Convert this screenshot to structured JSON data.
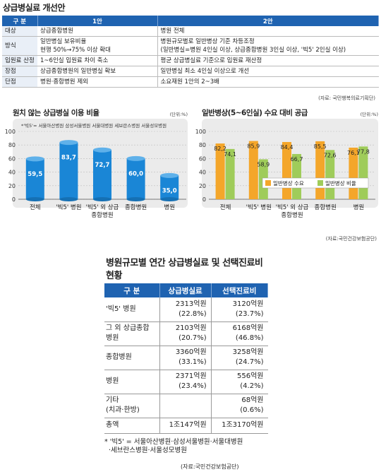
{
  "title": "상급병실료 개선안",
  "plan": {
    "headers": [
      "구  분",
      "1안",
      "2안"
    ],
    "rows": [
      {
        "k": "대상",
        "a": "상급종합병원",
        "b": "병원 전체"
      },
      {
        "k": "방식",
        "a": "일반병실 보유비율\n현행 50%→75% 이상 확대",
        "b": "병원규모별로 일반병상 기준 차등조정\n(일반병실=병원 4인실 이상, 상급종합병원 3인실 이상, '빅5' 2인실 이상)"
      },
      {
        "k": "입원료 산정",
        "a": "1~6인실 입원료 차이 축소",
        "b": "평균 상급병실료 기준으로 입원료 재산정"
      },
      {
        "k": "장점",
        "a": "상급종합병원의 일반병실 확보",
        "b": "일반병실 최소 4인실 이상으로 개선"
      },
      {
        "k": "단점",
        "a": "병원·종합병원 제외",
        "b": "소요재원 1안의 2~3배"
      }
    ],
    "source": "(자료: 국민행복의료기획단)"
  },
  "chart_data": [
    {
      "type": "bar",
      "title": "원치 않는 상급병실 이용 비율",
      "unit": "(단위:%)",
      "note": "*'빅5'= 서울아산병원 삼성서울병원 서울대병원 세브란스병원 서울성모병원",
      "categories": [
        "전체",
        "'빅5' 병원",
        "'빅5' 외 상급\n종합병원",
        "종합병원",
        "병원"
      ],
      "values": [
        59.5,
        83.7,
        72.7,
        60.0,
        35.0
      ],
      "value_labels": [
        "59,5",
        "83,7",
        "72,7",
        "60,0",
        "35,0"
      ],
      "y_ticks": [
        "0",
        "20",
        "40",
        "60",
        "80",
        "100"
      ],
      "ylim": [
        0,
        100
      ],
      "color": "#1a86d6"
    },
    {
      "type": "bar",
      "title": "일반병상(5~6인실) 수요 대비 공급",
      "unit": "(단위:%)",
      "categories": [
        "전체",
        "'빅5' 병원",
        "'빅5' 외 상급\n종합병원",
        "종합병원",
        "병원"
      ],
      "series": [
        {
          "name": "일반병상 수요",
          "values": [
            82.2,
            85.9,
            84.4,
            85.5,
            76.1
          ],
          "labels": [
            "82,2",
            "85,9",
            "84,4",
            "85,5",
            "76,1"
          ],
          "color": "#f4a62a"
        },
        {
          "name": "일반병상 비율",
          "values": [
            74.1,
            58.9,
            66.7,
            72.6,
            77.8
          ],
          "labels": [
            "74,1",
            "58,9",
            "66,7",
            "72,6",
            "77,8"
          ],
          "color": "#9fcc5a"
        }
      ],
      "y_ticks": [
        "0",
        "20",
        "40",
        "60",
        "80",
        "100"
      ],
      "ylim": [
        0,
        100
      ],
      "source": "(자료:국민건강보험공단)"
    }
  ],
  "cost": {
    "title": "병원규모별 연간 상급병실료 및 선택진료비 현황",
    "headers": [
      "구  분",
      "상급병실료",
      "선택진료비"
    ],
    "rows": [
      {
        "k": "'빅5' 병원",
        "a": "2313억원",
        "a2": "(22.8%)",
        "b": "3120억원",
        "b2": "(23.7%)"
      },
      {
        "k": "그 외 상급종합\n병원",
        "a": "2103억원",
        "a2": "(20.7%)",
        "b": "6168억원",
        "b2": "(46.8%)"
      },
      {
        "k": "종합병원",
        "a": "3360억원",
        "a2": "(33.1%)",
        "b": "3258억원",
        "b2": "(24.7%)"
      },
      {
        "k": "병원",
        "a": "2371억원",
        "a2": "(23.4%)",
        "b": "556억원",
        "b2": "(4.2%)"
      },
      {
        "k": "기타\n(치과·한방)",
        "a": "",
        "a2": "",
        "b": "68억원",
        "b2": "(0.6%)"
      },
      {
        "k": "총액",
        "a": "1조147억원",
        "a2": "",
        "b": "1조3170억원",
        "b2": ""
      }
    ],
    "note": "* '빅5' = 서울아산병원·삼성서울병원·서울대병원\n  ·세브란스병원·서울성모병원",
    "source": "(자료:국민건강보험공단)"
  }
}
